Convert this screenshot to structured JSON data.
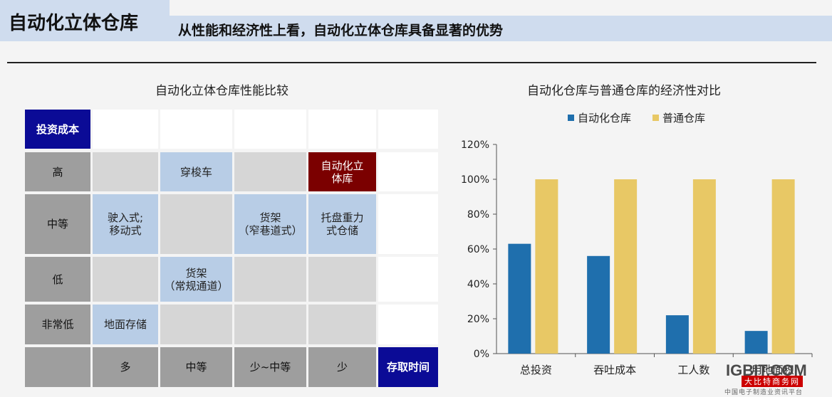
{
  "header": {
    "title": "自动化立体仓库",
    "subtitle": "从性能和经济性上看，自动化立体仓库具备显著的优势"
  },
  "matrix": {
    "title": "自动化立体仓库性能比较",
    "y_axis_label": "投资成本",
    "x_axis_label": "存取时间",
    "row_labels": [
      "高",
      "中等",
      "低",
      "非常低"
    ],
    "col_labels": [
      "多",
      "中等",
      "少~中等",
      "少"
    ],
    "cells": {
      "r0c1": "穿梭车",
      "r0c3": "自动化立\n体库",
      "r1c0": "驶入式;\n移动式",
      "r1c2": "货架\n（窄巷道式）",
      "r1c3": "托盘重力\n式仓储",
      "r2c1": "货架\n（常规通道）",
      "r3c0": "地面存储"
    }
  },
  "chart_data": {
    "type": "bar",
    "title": "自动化仓库与普通仓库的经济性对比",
    "categories": [
      "总投资",
      "吞吐成本",
      "工人数",
      "用地面积"
    ],
    "series": [
      {
        "name": "自动化仓库",
        "values": [
          63,
          56,
          22,
          13
        ],
        "color": "#1f6fad"
      },
      {
        "name": "普通仓库",
        "values": [
          100,
          100,
          100,
          100
        ],
        "color": "#e8c865"
      }
    ],
    "ylim": [
      0,
      120
    ],
    "yticks": [
      "0%",
      "20%",
      "40%",
      "60%",
      "80%",
      "100%",
      "120%"
    ],
    "legend_position": "top",
    "grid": false
  },
  "watermark": {
    "logo": "IGBIT.COM",
    "line1": "大比特商务网",
    "line2": "中国电子制造业资讯平台"
  }
}
